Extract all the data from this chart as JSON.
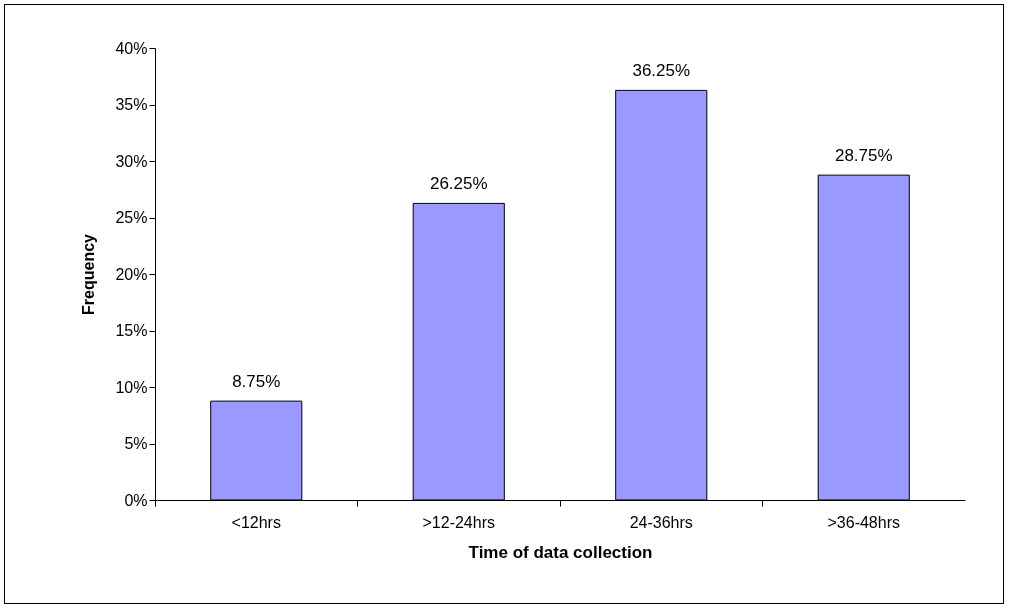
{
  "chart_data": {
    "type": "bar",
    "xlabel": "Time of data collection",
    "ylabel": "Frequency",
    "categories": [
      "<12hrs",
      ">12-24hrs",
      "24-36hrs",
      ">36-48hrs"
    ],
    "values": [
      8.75,
      26.25,
      36.25,
      28.75
    ],
    "value_labels": [
      "8.75%",
      "26.25%",
      "36.25%",
      "28.75%"
    ],
    "color": "#9999ff",
    "ylim": [
      0,
      40
    ],
    "yticks": [
      {
        "value": 0,
        "label": "0%"
      },
      {
        "value": 5,
        "label": "5%"
      },
      {
        "value": 10,
        "label": "10%"
      },
      {
        "value": 15,
        "label": "15%"
      },
      {
        "value": 20,
        "label": "20%"
      },
      {
        "value": 25,
        "label": "25%"
      },
      {
        "value": 30,
        "label": "30%"
      },
      {
        "value": 35,
        "label": "35%"
      },
      {
        "value": 40,
        "label": "40%"
      }
    ],
    "grid": false
  }
}
